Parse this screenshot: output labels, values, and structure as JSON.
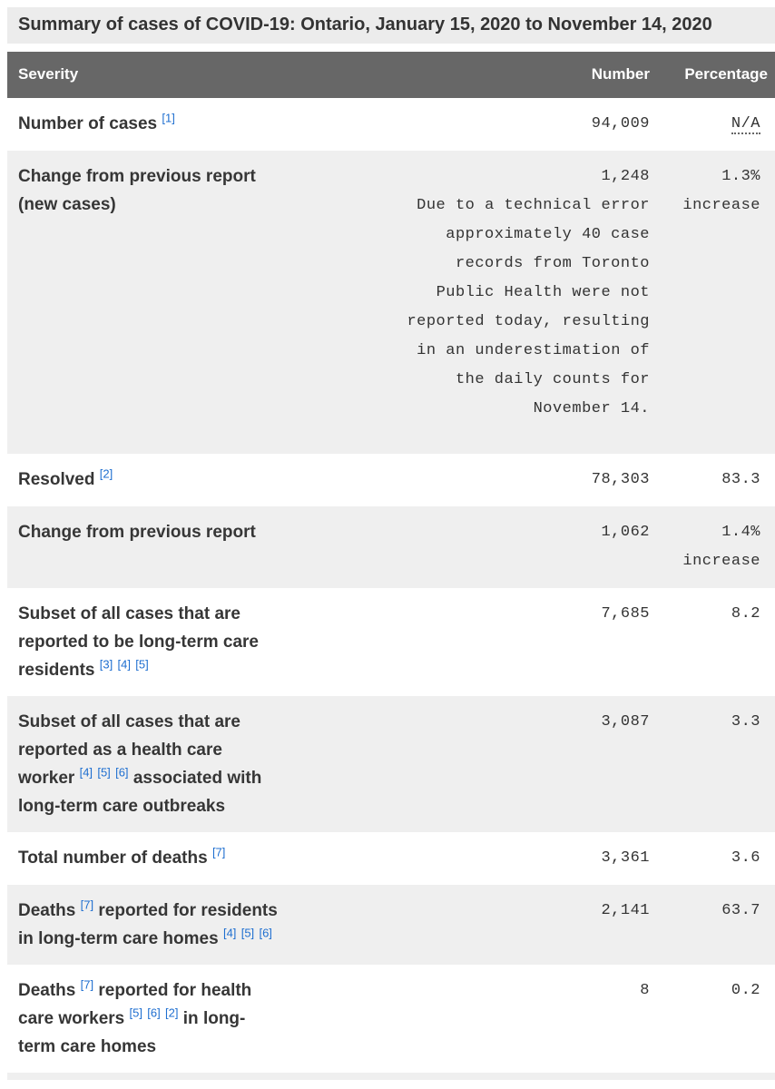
{
  "page": {
    "caption": "Summary of cases of COVID-19: Ontario, January 15, 2020 to November 14, 2020"
  },
  "colors": {
    "caption_bg": "#ececec",
    "header_bg": "#676767",
    "shaded_row_bg": "#efefef",
    "footnote_link_blue": "#1f6fd0",
    "text": "#333333"
  },
  "table": {
    "columns": [
      "Severity",
      "Number",
      "Percentage"
    ],
    "rows": [
      {
        "shaded": false,
        "label_parts": [
          {
            "t": "Number of cases "
          },
          {
            "sup": "[1]"
          }
        ],
        "number": "94,009",
        "percentage": "N/A",
        "percentage_abbr": true
      },
      {
        "shaded": true,
        "label_parts": [
          {
            "t": "Change from previous report"
          },
          {
            "br": true
          },
          {
            "t": "(new cases)"
          }
        ],
        "number": "1,248",
        "note": "Due to a technical error\napproximately 40 case\nrecords from Toronto\nPublic Health were not\nreported today, resulting\nin an underestimation of\nthe daily counts for\nNovember 14.",
        "percentage": "1.3%\nincrease"
      },
      {
        "shaded": false,
        "label_parts": [
          {
            "t": "Resolved "
          },
          {
            "sup": "[2]"
          }
        ],
        "number": "78,303",
        "percentage": "83.3"
      },
      {
        "shaded": true,
        "label_parts": [
          {
            "t": "Change from previous report"
          }
        ],
        "number": "1,062",
        "percentage": "1.4%\nincrease"
      },
      {
        "shaded": false,
        "label_parts": [
          {
            "t": "Subset of all cases that are"
          },
          {
            "br": true
          },
          {
            "t": "reported to be long-term care"
          },
          {
            "br": true
          },
          {
            "t": "residents "
          },
          {
            "sup": "[3]"
          },
          {
            "t": " "
          },
          {
            "sup": "[4]"
          },
          {
            "t": " "
          },
          {
            "sup": "[5]"
          }
        ],
        "number": "7,685",
        "percentage": "8.2"
      },
      {
        "shaded": true,
        "label_parts": [
          {
            "t": "Subset of all cases that are"
          },
          {
            "br": true
          },
          {
            "t": "reported as a health care"
          },
          {
            "br": true
          },
          {
            "t": "worker "
          },
          {
            "sup": "[4]"
          },
          {
            "t": " "
          },
          {
            "sup": "[5]"
          },
          {
            "t": " "
          },
          {
            "sup": "[6]"
          },
          {
            "t": " associated with"
          },
          {
            "br": true
          },
          {
            "t": "long-term care outbreaks"
          }
        ],
        "number": "3,087",
        "percentage": "3.3"
      },
      {
        "shaded": false,
        "label_parts": [
          {
            "t": "Total number of deaths "
          },
          {
            "sup": "[7]"
          }
        ],
        "number": "3,361",
        "percentage": "3.6"
      },
      {
        "shaded": true,
        "label_parts": [
          {
            "t": "Deaths "
          },
          {
            "sup": "[7]"
          },
          {
            "t": " reported for residents"
          },
          {
            "br": true
          },
          {
            "t": "in long-term care homes "
          },
          {
            "sup": "[4]"
          },
          {
            "t": " "
          },
          {
            "sup": "[5]"
          },
          {
            "t": " "
          },
          {
            "sup": "[6]"
          }
        ],
        "number": "2,141",
        "percentage": "63.7"
      },
      {
        "shaded": false,
        "label_parts": [
          {
            "t": "Deaths "
          },
          {
            "sup": "[7]"
          },
          {
            "t": " reported for health"
          },
          {
            "br": true
          },
          {
            "t": "care workers "
          },
          {
            "sup": "[5]"
          },
          {
            "t": " "
          },
          {
            "sup": "[6]"
          },
          {
            "t": " "
          },
          {
            "sup": "[2]"
          },
          {
            "t": " in long-"
          },
          {
            "br": true
          },
          {
            "t": "term care homes"
          }
        ],
        "number": "8",
        "percentage": "0.2"
      }
    ]
  }
}
